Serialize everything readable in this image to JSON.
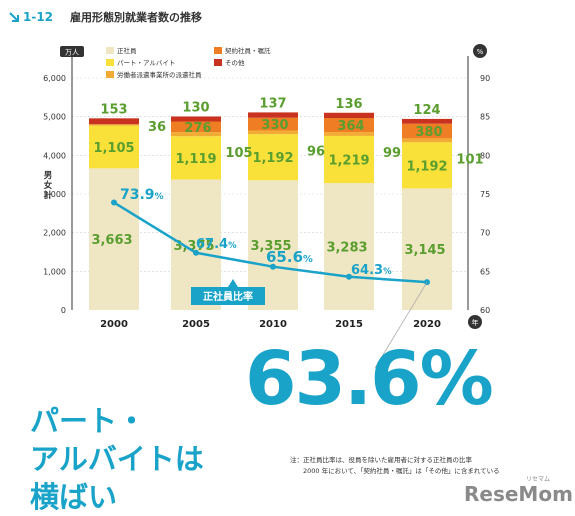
{
  "chart_data": {
    "type": "bar",
    "title_number": "1-12",
    "title": "雇用形態別就業者数の推移",
    "categories": [
      "2000",
      "2005",
      "2010",
      "2015",
      "2020"
    ],
    "series": [
      {
        "name": "正社員",
        "color": "#efe6c4",
        "values": [
          3663,
          3375,
          3355,
          3283,
          3145
        ]
      },
      {
        "name": "パート・アルバイト",
        "color": "#f9e13a",
        "values": [
          1105,
          1119,
          1192,
          1219,
          1192
        ]
      },
      {
        "name": "労働者派遣事業所の派遣社員",
        "color": "#f2ac33",
        "values": [
          36,
          105,
          96,
          99,
          101
        ]
      },
      {
        "name": "契約社員・嘱託",
        "color": "#ee7d24",
        "values": [
          0,
          276,
          330,
          364,
          380
        ]
      },
      {
        "name": "その他",
        "color": "#c8321f",
        "values": [
          153,
          130,
          137,
          136,
          124
        ]
      }
    ],
    "ratio_series": {
      "name": "正社員比率",
      "values": [
        73.9,
        67.4,
        65.6,
        64.3,
        63.6
      ],
      "color": "#1aa3c9"
    },
    "y_left": {
      "unit": "万人",
      "label": "男女計",
      "min": 0,
      "max": 6000,
      "ticks": [
        "0",
        "1,000",
        "2,000",
        "3,000",
        "4,000",
        "5,000",
        "6,000"
      ]
    },
    "y_right": {
      "unit": "%",
      "min": 60,
      "max": 90,
      "ticks": [
        "60",
        "65",
        "70",
        "75",
        "80",
        "85",
        "90"
      ]
    },
    "x_unit": "年",
    "bar_labels": {
      "seishain": [
        "3,663",
        "3,375",
        "3,355",
        "3,283",
        "3,145"
      ],
      "part": [
        "1,105",
        "1,119",
        "1,192",
        "1,219",
        "1,192"
      ],
      "haken": [
        "36",
        "105",
        "96",
        "99",
        "101"
      ],
      "keiyaku": [
        "",
        "276",
        "330",
        "364",
        "380"
      ],
      "other": [
        "153",
        "130",
        "137",
        "136",
        "124"
      ]
    },
    "ratio_labels": [
      {
        "num": "73.9",
        "pct": "%"
      },
      {
        "num": "67.4",
        "pct": "%"
      },
      {
        "num": "65.6",
        "pct": "%"
      },
      {
        "num": "64.3",
        "pct": "%"
      }
    ],
    "legend": [
      "正社員",
      "パート・アルバイト",
      "労働者派遣事業所の派遣社員",
      "契約社員・嘱託",
      "その他"
    ],
    "legend_position": "top-left",
    "grid": true
  },
  "headline": {
    "line1": "パート・",
    "line2": "アルバイトは",
    "line3": "横ばい"
  },
  "big_figure": "63.6%",
  "note": {
    "line1": "注：正社員比率は、役員を除いた雇用者に対する正社員の比率",
    "line2": "2000 年において、「契約社員・嘱託」は「その他」に含まれている"
  },
  "watermark": {
    "text": "ReseMom",
    "subtext": "リセマム"
  }
}
